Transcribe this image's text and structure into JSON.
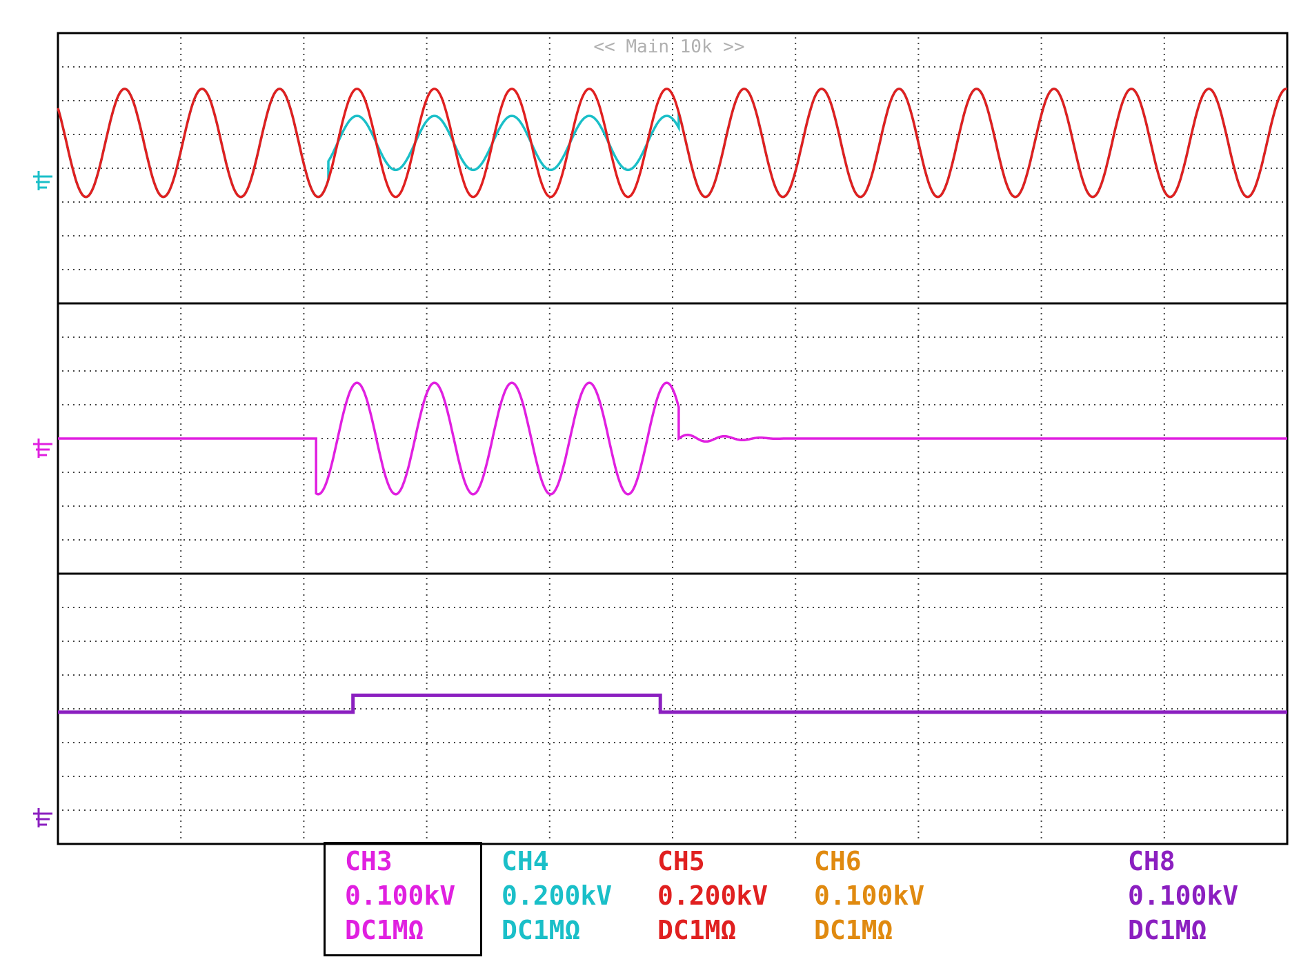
{
  "header": {
    "zoom_label": "<< Main 10k >>"
  },
  "chart_data": [
    {
      "type": "line",
      "panel": "top",
      "x_divisions": 10,
      "y_divisions": 8,
      "grid": true,
      "series": [
        {
          "channel": "CH4",
          "color": "#1ABFC8",
          "segments": [
            {
              "x_start": 0.0,
              "x_end": 2.2,
              "kind": "sine",
              "amplitude_div": 1.6,
              "offset_div": 0,
              "period_div": 0.63
            },
            {
              "x_start": 2.2,
              "x_end": 5.05,
              "kind": "sine",
              "amplitude_div": 0.8,
              "offset_div": 0,
              "period_div": 0.63
            },
            {
              "x_start": 5.05,
              "x_end": 10.0,
              "kind": "sine",
              "amplitude_div": 1.6,
              "offset_div": 0,
              "period_div": 0.63
            }
          ]
        },
        {
          "channel": "CH5",
          "color": "#E02020",
          "segments": [
            {
              "x_start": 0.0,
              "x_end": 10.0,
              "kind": "sine",
              "amplitude_div": 1.6,
              "offset_div": 0,
              "period_div": 0.63
            }
          ]
        }
      ]
    },
    {
      "type": "line",
      "panel": "middle",
      "x_divisions": 10,
      "y_divisions": 8,
      "grid": true,
      "series": [
        {
          "channel": "CH3",
          "color": "#E020E0",
          "segments": [
            {
              "x_start": 0.0,
              "x_end": 2.1,
              "kind": "flat",
              "level_div": 0
            },
            {
              "x_start": 2.1,
              "x_end": 5.05,
              "kind": "sine",
              "amplitude_div": 1.65,
              "offset_div": 0,
              "period_div": 0.63
            },
            {
              "x_start": 5.05,
              "x_end": 5.9,
              "kind": "decay",
              "amplitude_div": 0.12
            },
            {
              "x_start": 5.9,
              "x_end": 10.0,
              "kind": "flat",
              "level_div": 0
            }
          ]
        }
      ]
    },
    {
      "type": "line",
      "panel": "bottom",
      "x_divisions": 10,
      "y_divisions": 8,
      "grid": true,
      "series": [
        {
          "channel": "CH8",
          "color": "#8B1FC0",
          "steps": [
            {
              "x_start": 0.0,
              "x_end": 2.4,
              "level_div": 4.1
            },
            {
              "x_start": 2.4,
              "x_end": 4.9,
              "level_div": 3.6
            },
            {
              "x_start": 4.9,
              "x_end": 10.0,
              "level_div": 4.1
            }
          ]
        }
      ]
    }
  ],
  "channels": [
    {
      "name": "CH3",
      "scale": "0.100kV",
      "coupling": "DC1MΩ",
      "color": "#E020E0",
      "selected": true
    },
    {
      "name": "CH4",
      "scale": "0.200kV",
      "coupling": "DC1MΩ",
      "color": "#1ABFC8",
      "selected": false
    },
    {
      "name": "CH5",
      "scale": "0.200kV",
      "coupling": "DC1MΩ",
      "color": "#E02020",
      "selected": false
    },
    {
      "name": "CH6",
      "scale": "0.100kV",
      "coupling": "DC1MΩ",
      "color": "#E08A10",
      "selected": false
    },
    {
      "name": "CH8",
      "scale": "0.100kV",
      "coupling": "DC1MΩ",
      "color": "#8B1FC0",
      "selected": false
    }
  ]
}
